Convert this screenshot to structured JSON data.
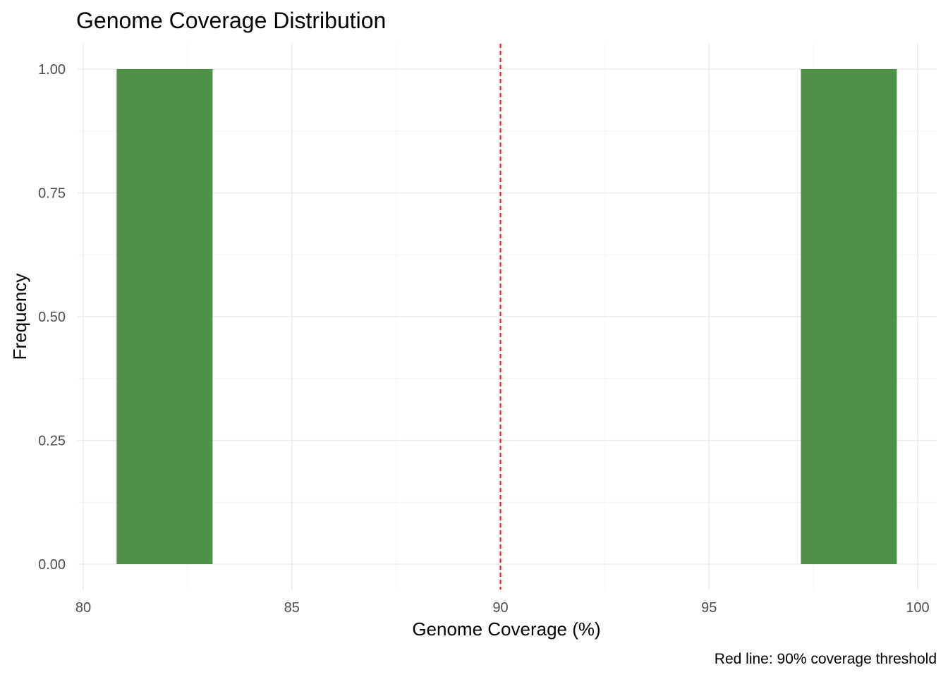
{
  "chart_data": {
    "type": "bar",
    "title": "Genome Coverage Distribution",
    "xlabel": "Genome Coverage (%)",
    "ylabel": "Frequency",
    "caption": "Red line: 90% coverage threshold",
    "xlim": [
      80,
      100
    ],
    "ylim": [
      0,
      1
    ],
    "x_ticks": [
      80,
      85,
      90,
      95,
      100
    ],
    "x_tick_labels": [
      "80",
      "85",
      "90",
      "95",
      "100"
    ],
    "y_ticks": [
      0,
      0.25,
      0.5,
      0.75,
      1
    ],
    "y_tick_labels": [
      "0.00",
      "0.25",
      "0.50",
      "0.75",
      "1.00"
    ],
    "bins": [
      {
        "x_start": 80.8,
        "x_end": 83.1,
        "count": 1
      },
      {
        "x_start": 97.2,
        "x_end": 99.5,
        "count": 1
      }
    ],
    "threshold": {
      "x": 90,
      "style": "dashed"
    },
    "grid": true,
    "colors": {
      "bar": "#3a8434",
      "threshold": "#e31a1c"
    }
  }
}
